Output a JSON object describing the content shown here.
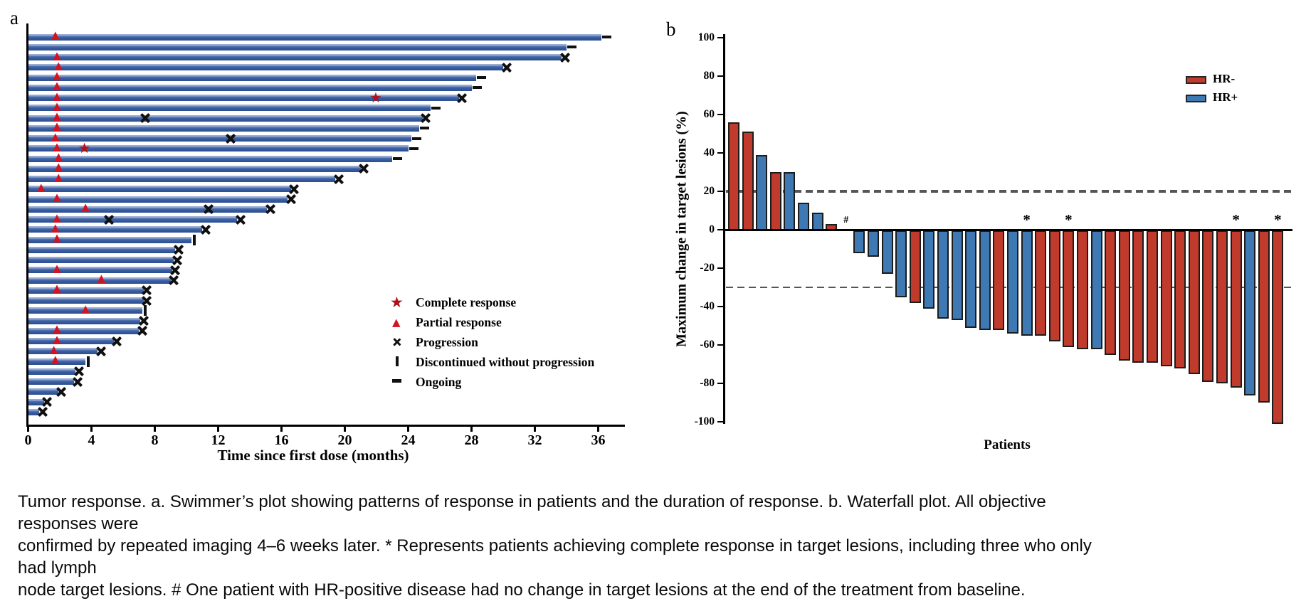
{
  "colors": {
    "swimmer_bar": "#35599b",
    "hr_negative": "#c13b2c",
    "hr_positive": "#3e79b4",
    "marker_triangle": "#d11422",
    "marker_star": "#ae1118",
    "marker_black": "#101010",
    "dashed_reference": "#565656"
  },
  "chart_data": [
    {
      "id": "swimmer_plot",
      "type": "bar",
      "orientation": "horizontal",
      "panel_label": "a",
      "xlabel": "Time since first dose (months)",
      "x_ticks": [
        0,
        4,
        8,
        12,
        16,
        20,
        24,
        28,
        32,
        36
      ],
      "xlim": [
        0,
        37.7
      ],
      "grid": false,
      "legend_position": "center-right",
      "legend": [
        {
          "symbol": "star",
          "label": "Complete response"
        },
        {
          "symbol": "triangle",
          "label": "Partial response"
        },
        {
          "symbol": "x",
          "label": "Progression"
        },
        {
          "symbol": "vbar",
          "label": "Discontinued without progression"
        },
        {
          "symbol": "dash",
          "label": "Ongoing"
        }
      ],
      "bars": [
        {
          "duration": 36.2,
          "end": "ongoing",
          "events": [
            {
              "type": "partial_response",
              "month": 1.8
            }
          ]
        },
        {
          "duration": 34.0,
          "end": "ongoing",
          "events": []
        },
        {
          "duration": 33.7,
          "end": "progression",
          "events": [
            {
              "type": "partial_response",
              "month": 1.9
            }
          ]
        },
        {
          "duration": 30.0,
          "end": "progression",
          "events": [
            {
              "type": "partial_response",
              "month": 2.0
            }
          ]
        },
        {
          "duration": 28.3,
          "end": "ongoing",
          "events": [
            {
              "type": "partial_response",
              "month": 1.9
            }
          ]
        },
        {
          "duration": 28.0,
          "end": "ongoing",
          "events": [
            {
              "type": "partial_response",
              "month": 1.9
            }
          ]
        },
        {
          "duration": 27.2,
          "end": "progression",
          "events": [
            {
              "type": "partial_response",
              "month": 1.9
            },
            {
              "type": "complete_response",
              "month": 22.0
            }
          ]
        },
        {
          "duration": 25.4,
          "end": "ongoing",
          "events": [
            {
              "type": "partial_response",
              "month": 1.9
            }
          ]
        },
        {
          "duration": 24.9,
          "end": "progression",
          "events": [
            {
              "type": "partial_response",
              "month": 1.9
            },
            {
              "type": "progression",
              "month": 7.4
            }
          ]
        },
        {
          "duration": 24.7,
          "end": "ongoing",
          "events": [
            {
              "type": "partial_response",
              "month": 1.9
            }
          ]
        },
        {
          "duration": 24.2,
          "end": "ongoing",
          "events": [
            {
              "type": "partial_response",
              "month": 1.8
            },
            {
              "type": "progression",
              "month": 12.8
            }
          ]
        },
        {
          "duration": 24.0,
          "end": "ongoing",
          "events": [
            {
              "type": "partial_response",
              "month": 1.9
            },
            {
              "type": "complete_response",
              "month": 3.6
            }
          ]
        },
        {
          "duration": 23.0,
          "end": "ongoing",
          "events": [
            {
              "type": "partial_response",
              "month": 2.0
            }
          ]
        },
        {
          "duration": 21.0,
          "end": "progression",
          "events": [
            {
              "type": "partial_response",
              "month": 2.0
            }
          ]
        },
        {
          "duration": 19.4,
          "end": "progression",
          "events": [
            {
              "type": "partial_response",
              "month": 2.0
            }
          ]
        },
        {
          "duration": 16.6,
          "end": "progression",
          "events": [
            {
              "type": "partial_response",
              "month": 0.9
            }
          ]
        },
        {
          "duration": 16.4,
          "end": "progression",
          "events": [
            {
              "type": "partial_response",
              "month": 1.9
            }
          ]
        },
        {
          "duration": 15.1,
          "end": "progression",
          "events": [
            {
              "type": "partial_response",
              "month": 3.7
            },
            {
              "type": "progression",
              "month": 11.4
            }
          ]
        },
        {
          "duration": 13.2,
          "end": "progression",
          "events": [
            {
              "type": "partial_response",
              "month": 1.9
            },
            {
              "type": "progression",
              "month": 5.1
            }
          ]
        },
        {
          "duration": 11.0,
          "end": "progression",
          "events": [
            {
              "type": "partial_response",
              "month": 1.8
            }
          ]
        },
        {
          "duration": 10.3,
          "end": "discontinued",
          "events": [
            {
              "type": "partial_response",
              "month": 1.9
            }
          ]
        },
        {
          "duration": 9.3,
          "end": "progression",
          "events": []
        },
        {
          "duration": 9.2,
          "end": "progression",
          "events": []
        },
        {
          "duration": 9.1,
          "end": "progression",
          "events": [
            {
              "type": "partial_response",
              "month": 1.9
            }
          ]
        },
        {
          "duration": 9.0,
          "end": "progression",
          "events": [
            {
              "type": "partial_response",
              "month": 4.7
            }
          ]
        },
        {
          "duration": 7.3,
          "end": "progression",
          "events": [
            {
              "type": "partial_response",
              "month": 1.9
            }
          ]
        },
        {
          "duration": 7.3,
          "end": "progression",
          "events": []
        },
        {
          "duration": 7.2,
          "end": "discontinued",
          "events": [
            {
              "type": "partial_response",
              "month": 3.7
            }
          ]
        },
        {
          "duration": 7.1,
          "end": "progression",
          "events": []
        },
        {
          "duration": 7.0,
          "end": "progression",
          "events": [
            {
              "type": "partial_response",
              "month": 1.9
            }
          ]
        },
        {
          "duration": 5.4,
          "end": "progression",
          "events": [
            {
              "type": "partial_response",
              "month": 1.9
            }
          ]
        },
        {
          "duration": 4.4,
          "end": "progression",
          "events": [
            {
              "type": "partial_response",
              "month": 1.7
            }
          ]
        },
        {
          "duration": 3.6,
          "end": "discontinued",
          "events": [
            {
              "type": "partial_response",
              "month": 1.8
            }
          ]
        },
        {
          "duration": 3.0,
          "end": "progression",
          "events": []
        },
        {
          "duration": 2.9,
          "end": "progression",
          "events": []
        },
        {
          "duration": 1.9,
          "end": "progression",
          "events": []
        },
        {
          "duration": 1.0,
          "end": "progression",
          "events": []
        },
        {
          "duration": 0.7,
          "end": "progression",
          "events": []
        }
      ]
    },
    {
      "id": "waterfall_plot",
      "type": "bar",
      "panel_label": "b",
      "ylabel": "Maximum change in target lesions (%)",
      "xlabel": "Patients",
      "ylim": [
        -100,
        100
      ],
      "y_ticks": [
        100,
        80,
        60,
        40,
        20,
        0,
        -20,
        -40,
        -60,
        -80,
        -100
      ],
      "reference_lines": [
        20,
        -30
      ],
      "grid": false,
      "legend_position": "top-right",
      "legend": [
        {
          "label": "HR-",
          "color_key": "hr_negative"
        },
        {
          "label": "HR+",
          "color_key": "hr_positive"
        }
      ],
      "bars": [
        {
          "value": 56,
          "group": "HR-"
        },
        {
          "value": 51,
          "group": "HR-"
        },
        {
          "value": 39,
          "group": "HR+"
        },
        {
          "value": 30,
          "group": "HR-"
        },
        {
          "value": 30,
          "group": "HR+"
        },
        {
          "value": 14,
          "group": "HR+"
        },
        {
          "value": 9,
          "group": "HR+"
        },
        {
          "value": 3,
          "group": "HR-"
        },
        {
          "value": 0,
          "group": "HR+",
          "annotation": "#"
        },
        {
          "value": -11,
          "group": "HR+"
        },
        {
          "value": -13,
          "group": "HR+"
        },
        {
          "value": -22,
          "group": "HR+"
        },
        {
          "value": -34,
          "group": "HR+"
        },
        {
          "value": -37,
          "group": "HR-"
        },
        {
          "value": -40,
          "group": "HR+"
        },
        {
          "value": -45,
          "group": "HR+"
        },
        {
          "value": -46,
          "group": "HR+"
        },
        {
          "value": -50,
          "group": "HR+"
        },
        {
          "value": -51,
          "group": "HR+"
        },
        {
          "value": -51,
          "group": "HR-"
        },
        {
          "value": -53,
          "group": "HR+"
        },
        {
          "value": -54,
          "group": "HR+",
          "annotation": "*"
        },
        {
          "value": -54,
          "group": "HR-"
        },
        {
          "value": -57,
          "group": "HR-"
        },
        {
          "value": -60,
          "group": "HR-",
          "annotation": "*"
        },
        {
          "value": -61,
          "group": "HR-"
        },
        {
          "value": -61,
          "group": "HR+"
        },
        {
          "value": -64,
          "group": "HR-"
        },
        {
          "value": -67,
          "group": "HR-"
        },
        {
          "value": -68,
          "group": "HR-"
        },
        {
          "value": -68,
          "group": "HR-"
        },
        {
          "value": -70,
          "group": "HR-"
        },
        {
          "value": -71,
          "group": "HR-"
        },
        {
          "value": -74,
          "group": "HR-"
        },
        {
          "value": -78,
          "group": "HR-"
        },
        {
          "value": -79,
          "group": "HR-"
        },
        {
          "value": -81,
          "group": "HR-",
          "annotation": "*"
        },
        {
          "value": -85,
          "group": "HR+"
        },
        {
          "value": -89,
          "group": "HR-"
        },
        {
          "value": -100,
          "group": "HR-",
          "annotation": "*"
        }
      ]
    }
  ],
  "caption": {
    "lines": [
      "Tumor response. a. Swimmer’s plot showing patterns of response in patients and the duration of response. b. Waterfall plot. All objective responses were",
      "confirmed by repeated imaging 4–6 weeks later. * Represents patients achieving complete response in target lesions, including three who only had lymph",
      "node target lesions. # One patient with HR-positive disease had no change in target lesions at the end of the treatment from baseline."
    ]
  }
}
